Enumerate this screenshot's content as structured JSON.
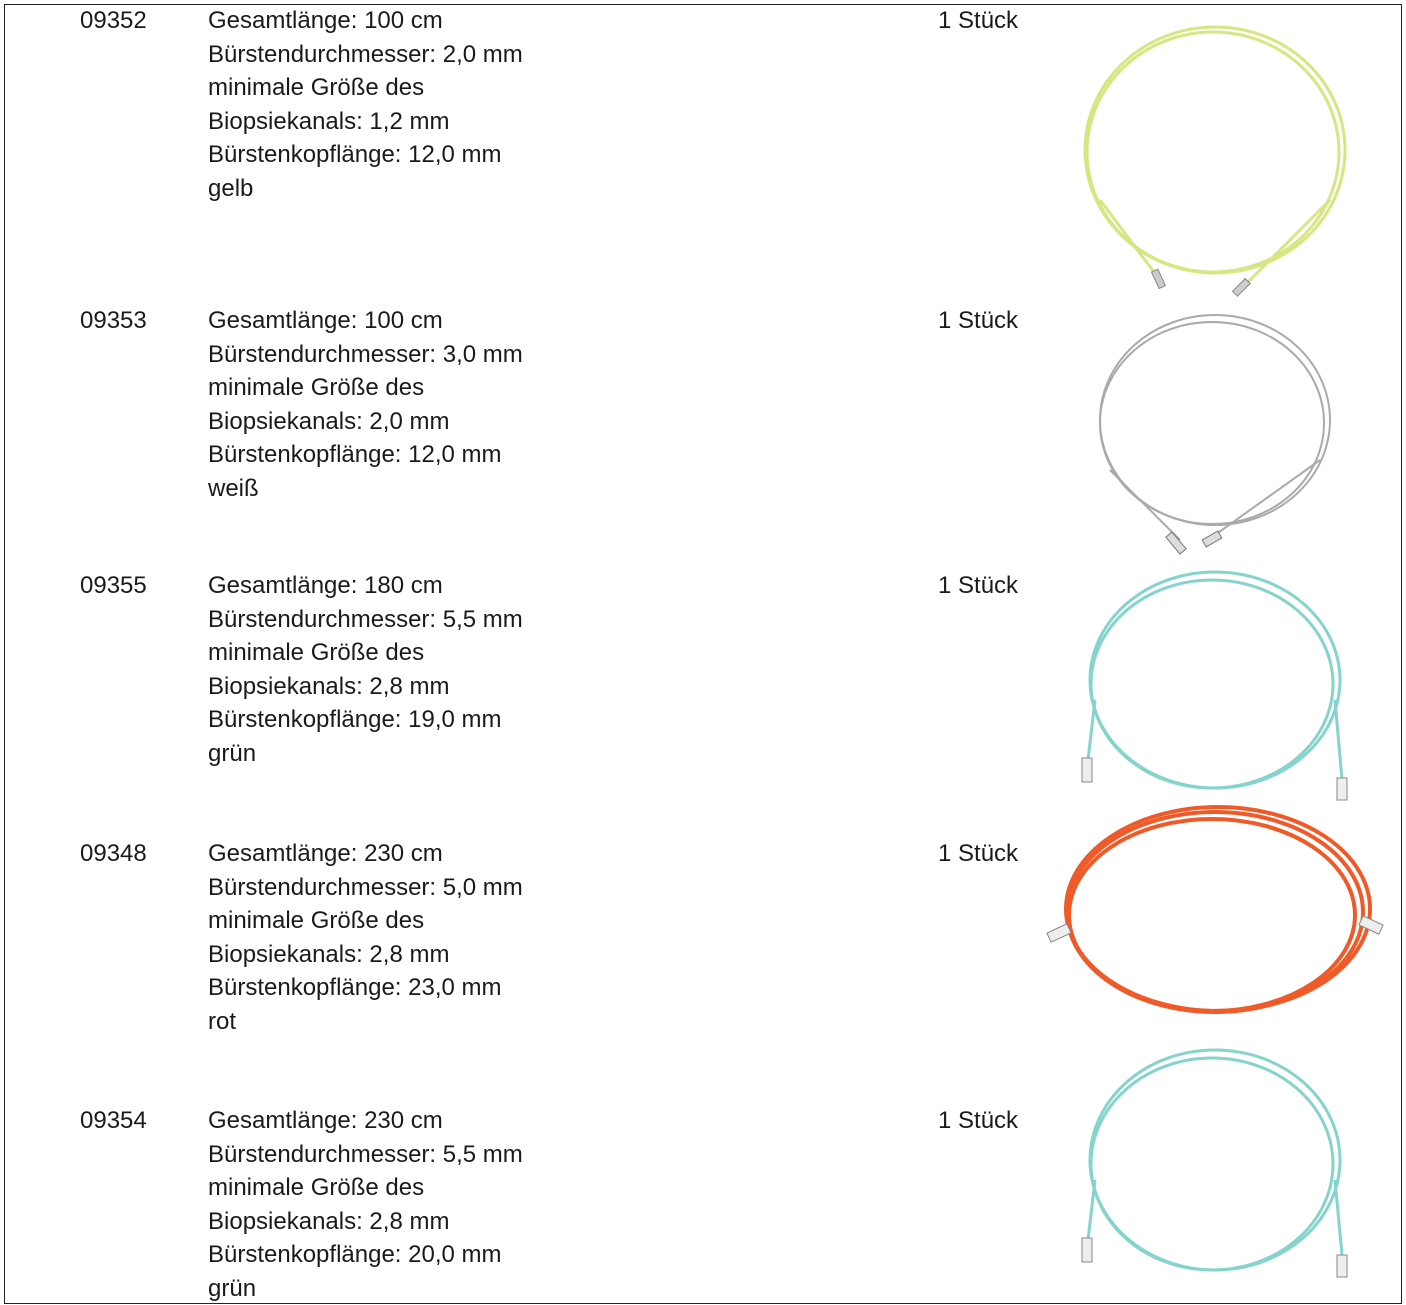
{
  "table": {
    "rows": [
      {
        "code": "09352",
        "lines": [
          "Gesamtlänge: 100 cm",
          "Bürstendurchmesser: 2,0 mm",
          "minimale Größe des",
          "Biopsiekanals: 1,2 mm",
          "Bürstenkopflänge: 12,0 mm",
          "gelb"
        ],
        "qty": "1 Stück"
      },
      {
        "code": "09353",
        "lines": [
          "Gesamtlänge: 100 cm",
          "Bürstendurchmesser: 3,0 mm",
          "minimale Größe des",
          "Biopsiekanals: 2,0 mm",
          "Bürstenkopflänge: 12,0 mm",
          "weiß"
        ],
        "qty": "1 Stück"
      },
      {
        "code": "09355",
        "lines": [
          "Gesamtlänge: 180 cm",
          "Bürstendurchmesser: 5,5 mm",
          "minimale Größe des",
          "Biopsiekanals: 2,8 mm",
          "Bürstenkopflänge: 19,0 mm",
          "grün"
        ],
        "qty": "1 Stück"
      },
      {
        "code": "09348",
        "lines": [
          "Gesamtlänge: 230 cm",
          "Bürstendurchmesser: 5,0 mm",
          "minimale Größe des",
          "Biopsiekanals: 2,8 mm",
          "Bürstenkopflänge: 23,0 mm",
          "rot"
        ],
        "qty": "1 Stück"
      },
      {
        "code": "09354",
        "lines": [
          "Gesamtlänge: 230 cm",
          "Bürstendurchmesser: 5,5 mm",
          "minimale Größe des",
          "Biopsiekanals: 2,8 mm",
          "Bürstenkopflänge: 20,0 mm",
          "grün"
        ],
        "qty": "1 Stück"
      }
    ]
  }
}
